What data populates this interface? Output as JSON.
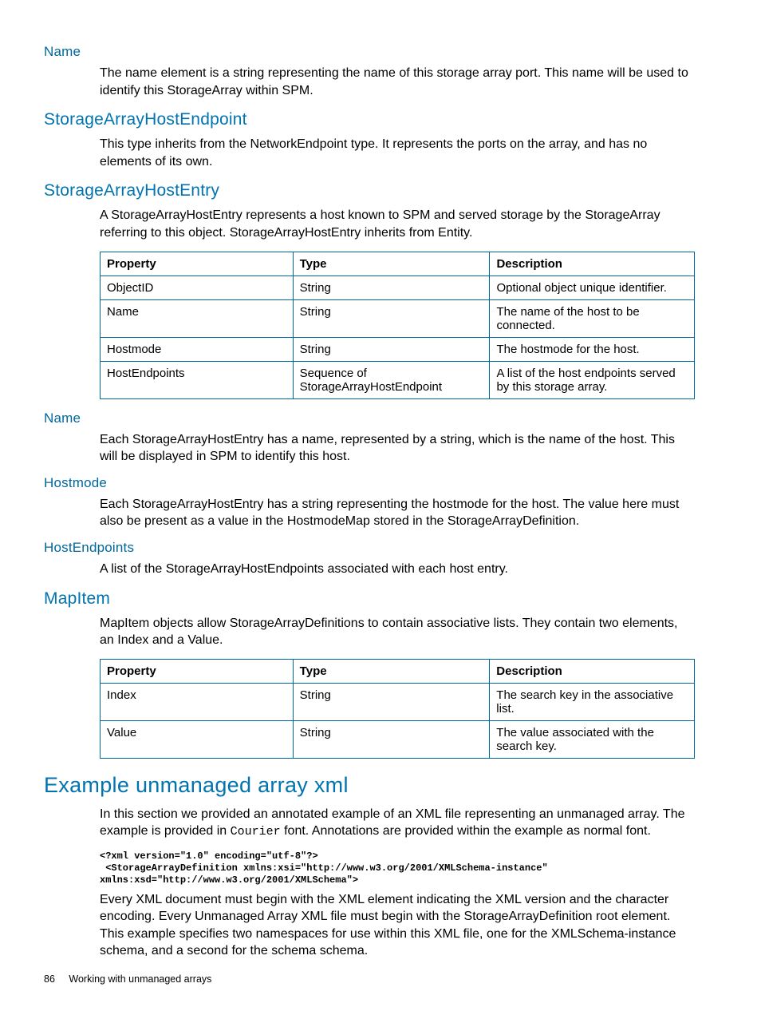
{
  "sections": {
    "name1": {
      "title": "Name",
      "body": "The name element is a string representing the name of this storage array port. This name will be used to identify this StorageArray within SPM."
    },
    "hostEndpoint": {
      "title": "StorageArrayHostEndpoint",
      "body": "This type inherits from the NetworkEndpoint type. It represents the ports on the array, and has no elements of its own."
    },
    "hostEntry": {
      "title": "StorageArrayHostEntry",
      "body": "A StorageArrayHostEntry represents a host known to SPM and served storage by the StorageArray referring to this object. StorageArrayHostEntry inherits from Entity."
    },
    "name2": {
      "title": "Name",
      "body": "Each StorageArrayHostEntry has a name, represented by a string, which is the name of the host. This will be displayed in SPM to identify this host."
    },
    "hostmode": {
      "title": "Hostmode",
      "body": "Each StorageArrayHostEntry has a string representing the hostmode for the host. The value here must also be present as a value in the HostmodeMap stored in the StorageArrayDefinition."
    },
    "hostEndpoints": {
      "title": "HostEndpoints",
      "body": "A list of the StorageArrayHostEndpoints associated with each host entry."
    },
    "mapItem": {
      "title": "MapItem",
      "body": "MapItem objects allow StorageArrayDefinitions to contain associative lists. They contain two elements, an Index and a Value."
    },
    "exampleXml": {
      "title": "Example unmanaged array xml",
      "body1a": "In this section we provided an annotated example of an XML file representing an unmanaged array. The example is provided in ",
      "body1b": "Courier",
      "body1c": " font. Annotations are provided within the example as normal font.",
      "code": "<?xml version=\"1.0\" encoding=\"utf-8\"?>\n <StorageArrayDefinition xmlns:xsi=\"http://www.w3.org/2001/XMLSchema-instance\"\nxmlns:xsd=\"http://www.w3.org/2001/XMLSchema\">",
      "body2": "Every XML document must begin with the XML element indicating the XML version and the character encoding. Every Unmanaged Array XML file must begin with the StorageArrayDefinition root element. This example specifies two namespaces for use within this XML file, one for the XMLSchema-instance schema, and a second for the schema schema."
    }
  },
  "table1": {
    "headers": [
      "Property",
      "Type",
      "Description"
    ],
    "colWidths": [
      "242px",
      "247px",
      "257px"
    ],
    "rows": [
      [
        "ObjectID",
        "String",
        "Optional object unique identifier."
      ],
      [
        "Name",
        "String",
        "The name of the host to be connected."
      ],
      [
        "Hostmode",
        "String",
        "The hostmode for the host."
      ],
      [
        "HostEndpoints",
        "Sequence of StorageArrayHostEndpoint",
        "A list of the host endpoints served by this storage array."
      ]
    ]
  },
  "table2": {
    "headers": [
      "Property",
      "Type",
      "Description"
    ],
    "colWidths": [
      "242px",
      "247px",
      "257px"
    ],
    "rows": [
      [
        "Index",
        "String",
        "The search key in the associative list."
      ],
      [
        "Value",
        "String",
        "The value associated with the search key."
      ]
    ]
  },
  "footer": {
    "pageNum": "86",
    "chapter": "Working with unmanaged arrays"
  }
}
